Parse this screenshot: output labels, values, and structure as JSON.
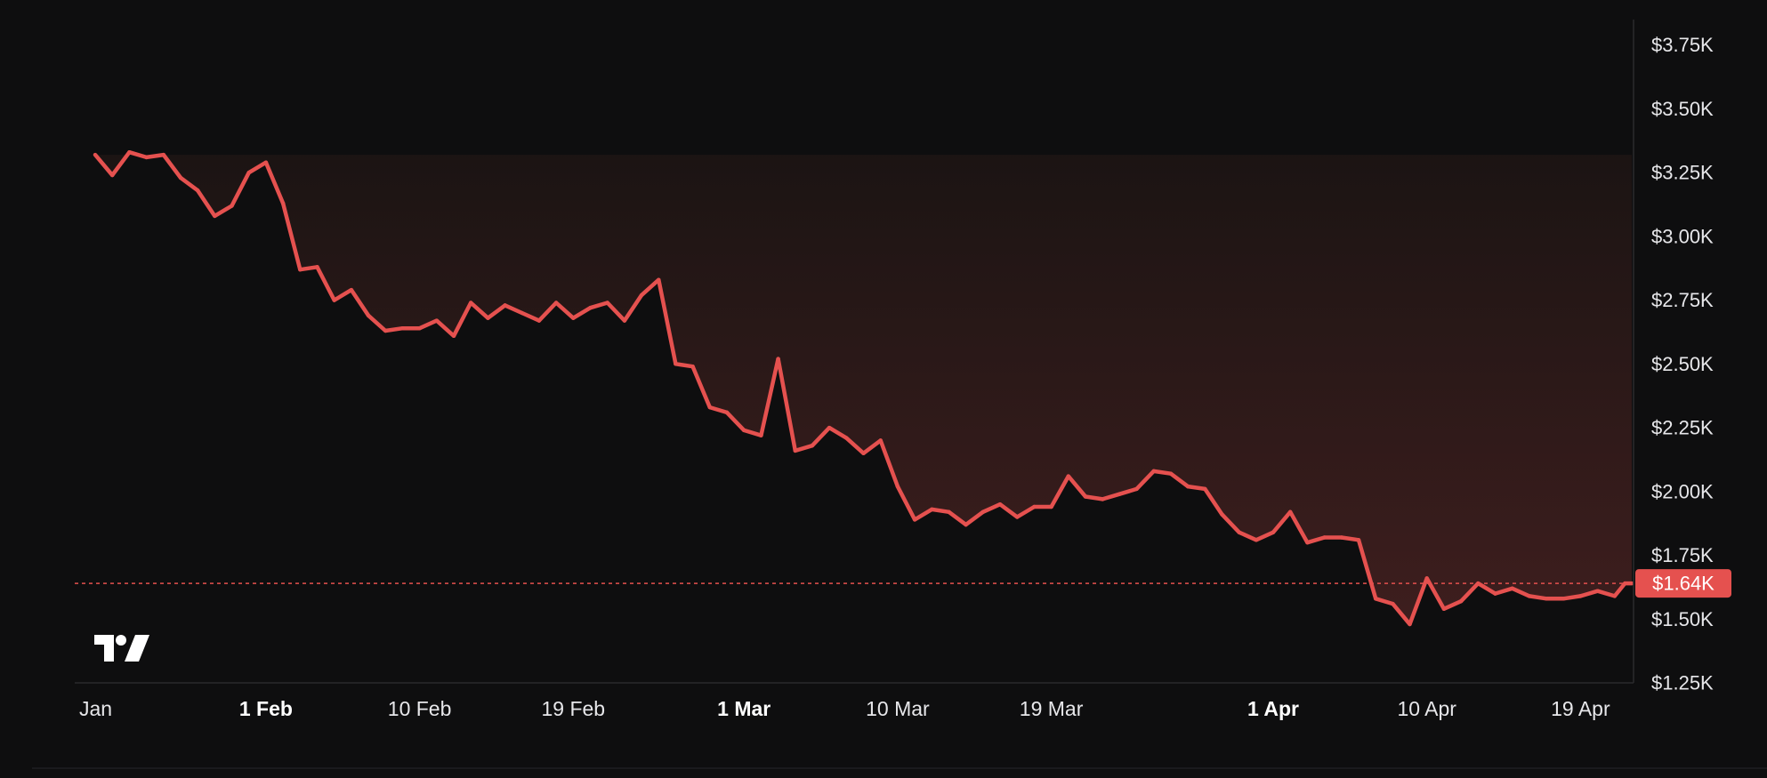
{
  "chart_data": {
    "type": "area",
    "title": "",
    "xlabel": "",
    "ylabel": "",
    "ylim": [
      1250,
      3850
    ],
    "grid": false,
    "y_ticks": [
      {
        "value": 3750,
        "label": "$3.75K"
      },
      {
        "value": 3500,
        "label": "$3.50K"
      },
      {
        "value": 3250,
        "label": "$3.25K"
      },
      {
        "value": 3000,
        "label": "$3.00K"
      },
      {
        "value": 2750,
        "label": "$2.75K"
      },
      {
        "value": 2500,
        "label": "$2.50K"
      },
      {
        "value": 2250,
        "label": "$2.25K"
      },
      {
        "value": 2000,
        "label": "$2.00K"
      },
      {
        "value": 1750,
        "label": "$1.75K"
      },
      {
        "value": 1500,
        "label": "$1.50K"
      },
      {
        "value": 1250,
        "label": "$1.25K"
      }
    ],
    "x_ticks": [
      {
        "day": 1,
        "label": "Jan",
        "major": false
      },
      {
        "day": 11,
        "label": "1 Feb",
        "major": true
      },
      {
        "day": 20,
        "label": "10 Feb",
        "major": false
      },
      {
        "day": 29,
        "label": "19 Feb",
        "major": false
      },
      {
        "day": 39,
        "label": "1 Mar",
        "major": true
      },
      {
        "day": 48,
        "label": "10 Mar",
        "major": false
      },
      {
        "day": 57,
        "label": "19 Mar",
        "major": false
      },
      {
        "day": 70,
        "label": "1 Apr",
        "major": true
      },
      {
        "day": 79,
        "label": "10 Apr",
        "major": false
      },
      {
        "day": 88,
        "label": "19 Apr",
        "major": false
      }
    ],
    "x_range": [
      -0.2,
      91
    ],
    "series": [
      {
        "values": [
          [
            1.0,
            3320
          ],
          [
            2.0,
            3240
          ],
          [
            3.0,
            3330
          ],
          [
            4.0,
            3310
          ],
          [
            5.0,
            3320
          ],
          [
            6.0,
            3230
          ],
          [
            7.0,
            3180
          ],
          [
            8.0,
            3080
          ],
          [
            9.0,
            3120
          ],
          [
            10.0,
            3250
          ],
          [
            11.0,
            3290
          ],
          [
            12.0,
            3130
          ],
          [
            13.0,
            2870
          ],
          [
            14.0,
            2880
          ],
          [
            15.0,
            2750
          ],
          [
            16.0,
            2790
          ],
          [
            17.0,
            2690
          ],
          [
            18.0,
            2630
          ],
          [
            19.0,
            2640
          ],
          [
            20.0,
            2640
          ],
          [
            21.0,
            2670
          ],
          [
            22.0,
            2610
          ],
          [
            23.0,
            2740
          ],
          [
            24.0,
            2680
          ],
          [
            25.0,
            2730
          ],
          [
            26.0,
            2700
          ],
          [
            27.0,
            2670
          ],
          [
            28.0,
            2740
          ],
          [
            29.0,
            2680
          ],
          [
            30.0,
            2720
          ],
          [
            31.0,
            2740
          ],
          [
            32.0,
            2670
          ],
          [
            33.0,
            2770
          ],
          [
            34.0,
            2830
          ],
          [
            35.0,
            2500
          ],
          [
            36.0,
            2490
          ],
          [
            37.0,
            2330
          ],
          [
            38.0,
            2310
          ],
          [
            39.0,
            2240
          ],
          [
            40.0,
            2220
          ],
          [
            41.0,
            2520
          ],
          [
            42.0,
            2160
          ],
          [
            43.0,
            2180
          ],
          [
            44.0,
            2250
          ],
          [
            45.0,
            2210
          ],
          [
            46.0,
            2150
          ],
          [
            47.0,
            2200
          ],
          [
            48.0,
            2020
          ],
          [
            49.0,
            1890
          ],
          [
            50.0,
            1930
          ],
          [
            51.0,
            1920
          ],
          [
            52.0,
            1870
          ],
          [
            53.0,
            1920
          ],
          [
            54.0,
            1950
          ],
          [
            55.0,
            1900
          ],
          [
            56.0,
            1940
          ],
          [
            57.0,
            1940
          ],
          [
            58.0,
            2060
          ],
          [
            59.0,
            1980
          ],
          [
            60.0,
            1970
          ],
          [
            61.0,
            1990
          ],
          [
            62.0,
            2010
          ],
          [
            63.0,
            2080
          ],
          [
            64.0,
            2070
          ],
          [
            65.0,
            2020
          ],
          [
            66.0,
            2010
          ],
          [
            67.0,
            1910
          ],
          [
            68.0,
            1840
          ],
          [
            69.0,
            1810
          ],
          [
            70.0,
            1840
          ],
          [
            71.0,
            1920
          ],
          [
            72.0,
            1800
          ],
          [
            73.0,
            1820
          ],
          [
            74.0,
            1820
          ],
          [
            75.0,
            1810
          ],
          [
            76.0,
            1580
          ],
          [
            77.0,
            1560
          ],
          [
            78.0,
            1480
          ],
          [
            79.0,
            1660
          ],
          [
            80.0,
            1540
          ],
          [
            81.0,
            1570
          ],
          [
            82.0,
            1640
          ],
          [
            83.0,
            1600
          ],
          [
            84.0,
            1620
          ],
          [
            85.0,
            1590
          ],
          [
            86.0,
            1580
          ],
          [
            87.0,
            1580
          ],
          [
            88.0,
            1590
          ],
          [
            89.0,
            1610
          ],
          [
            90.0,
            1590
          ],
          [
            90.6,
            1640
          ],
          [
            91.0,
            1640
          ]
        ]
      }
    ],
    "baseline_value": 3320,
    "current_price": 1640,
    "current_price_label": "$1.64K",
    "colors": {
      "background": "#0e0e0f",
      "line_down": "#e5514f",
      "line_up": "#5fb03f",
      "fill_top": "#1b1413",
      "fill_bottom": "#3e1e1e",
      "axis": "#2a2a2d",
      "tick_text": "#e7e7ea",
      "price_label_bg": "#e5514f",
      "price_label_text": "#ffffff"
    }
  },
  "watermark": {
    "icon": "tradingview-logo-icon"
  }
}
